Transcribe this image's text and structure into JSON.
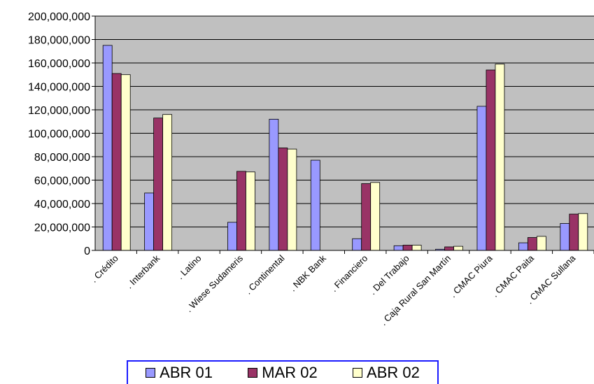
{
  "chart_data": {
    "type": "bar",
    "categories": [
      ". Crédito",
      ". Interbank",
      ". Latino",
      ". Wiese Sudameris",
      ". Continental",
      ". NBK Bank",
      ". Financiero",
      ". Del Trabajo",
      ". Caja Rural San Martín",
      ". CMAC Piura",
      ". CMAC Paita",
      ". CMAC Sullana"
    ],
    "series": [
      {
        "name": "ABR 01",
        "color": "#9999ff",
        "values": [
          175000000,
          49000000,
          0,
          24000000,
          112000000,
          77000000,
          10000000,
          4000000,
          1000000,
          123000000,
          6500000,
          23000000
        ]
      },
      {
        "name": "MAR 02",
        "color": "#993366",
        "values": [
          151000000,
          113000000,
          0,
          67500000,
          87500000,
          0,
          57000000,
          4500000,
          3000000,
          154000000,
          11000000,
          31000000
        ]
      },
      {
        "name": "ABR 02",
        "color": "#ffffcc",
        "values": [
          150000000,
          116000000,
          0,
          67000000,
          86500000,
          0,
          58000000,
          4500000,
          3500000,
          159000000,
          12000000,
          31500000
        ]
      }
    ],
    "ylim": [
      0,
      200000000
    ],
    "yticks": [
      "0",
      "20,000,000",
      "40,000,000",
      "60,000,000",
      "80,000,000",
      "100,000,000",
      "120,000,000",
      "140,000,000",
      "160,000,000",
      "180,000,000",
      "200,000,000"
    ],
    "plot_background": "#c0c0c0",
    "grid": true,
    "legend_position": "bottom"
  }
}
